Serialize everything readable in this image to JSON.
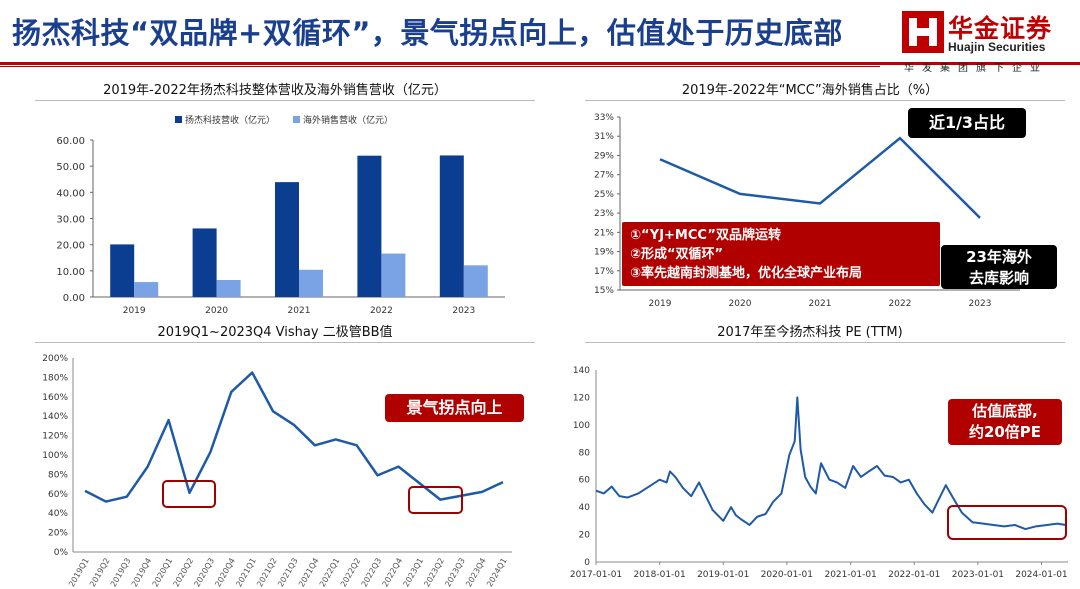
{
  "header": {
    "title": "扬杰科技“双品牌+双循环”，景气拐点向上，估值处于历史底部",
    "logo_cn": "华金证券",
    "logo_en": "Huajin Securities",
    "logo_sub": "华发集团旗下企业"
  },
  "colors": {
    "accent": "#c00000",
    "navy": "#0b3d91",
    "light_blue": "#7aa3e5",
    "line_blue": "#1f5aa6"
  },
  "panels": {
    "revenue": {
      "title": "2019年-2022年扬杰科技整体营收及海外销售营收（亿元）"
    },
    "mcc": {
      "title": "2019年-2022年“MCC”海外销售占比（%）",
      "callout_top": "近1/3占比",
      "callout_red": [
        "①“YJ+MCC”双品牌运转",
        "②形成“双循环”",
        "③率先越南封测基地，优化全球产业布局"
      ],
      "callout_bottom": [
        "23年海外",
        "去库影响"
      ]
    },
    "bb": {
      "title": "2019Q1~2023Q4 Vishay 二极管BB值",
      "callout": "景气拐点向上"
    },
    "pe": {
      "title": "2017年至今扬杰科技 PE (TTM)",
      "callout": [
        "估值底部,",
        "约20倍PE"
      ]
    }
  },
  "chart_data": [
    {
      "type": "bar",
      "categories": [
        "2019",
        "2020",
        "2021",
        "2022",
        "2023"
      ],
      "series": [
        {
          "name": "扬杰科技营收（亿元）",
          "values": [
            20.1,
            26.2,
            43.9,
            54.0,
            54.1
          ],
          "color": "#0b3d91"
        },
        {
          "name": "海外销售营收（亿元）",
          "values": [
            5.7,
            6.5,
            10.4,
            16.6,
            12.1
          ],
          "color": "#7aa3e5"
        }
      ],
      "ylim": [
        0,
        60
      ],
      "yticks": [
        "0.00",
        "10.00",
        "20.00",
        "30.00",
        "40.00",
        "50.00",
        "60.00"
      ],
      "legend": "top"
    },
    {
      "type": "line",
      "x": [
        "2019",
        "2020",
        "2021",
        "2022",
        "2023"
      ],
      "series": [
        {
          "values": [
            28.6,
            25.0,
            24.0,
            30.8,
            22.5
          ]
        }
      ],
      "ylim": [
        15,
        33
      ],
      "yticks": [
        "15%",
        "17%",
        "19%",
        "21%",
        "23%",
        "25%",
        "27%",
        "29%",
        "31%",
        "33%"
      ]
    },
    {
      "type": "line",
      "x": [
        "2019Q1",
        "2019Q2",
        "2019Q3",
        "2019Q4",
        "2020Q1",
        "2020Q2",
        "2020Q3",
        "2020Q4",
        "2021Q1",
        "2021Q2",
        "2021Q3",
        "2021Q4",
        "2022Q1",
        "2022Q2",
        "2022Q3",
        "2022Q4",
        "2023Q1",
        "2023Q2",
        "2023Q3",
        "2023Q4",
        "2024Q1"
      ],
      "series": [
        {
          "values": [
            63,
            52,
            57,
            88,
            136,
            61,
            103,
            165,
            185,
            145,
            131,
            110,
            116,
            110,
            79,
            88,
            71,
            54,
            58,
            62,
            72
          ]
        }
      ],
      "ylim": [
        0,
        200
      ],
      "yticks": [
        "0%",
        "20%",
        "40%",
        "60%",
        "80%",
        "100%",
        "120%",
        "140%",
        "160%",
        "180%",
        "200%"
      ]
    },
    {
      "type": "line",
      "x_range": [
        "2017-01-01",
        "2024-06-01"
      ],
      "xticks": [
        "2017-01-01",
        "2018-01-01",
        "2019-01-01",
        "2020-01-01",
        "2021-01-01",
        "2022-01-01",
        "2023-01-01",
        "2024-01-01"
      ],
      "series": [
        {
          "points": [
            [
              "2017-01-01",
              52
            ],
            [
              "2017-02-15",
              50
            ],
            [
              "2017-04-01",
              55
            ],
            [
              "2017-05-15",
              48
            ],
            [
              "2017-07-01",
              47
            ],
            [
              "2017-09-01",
              50
            ],
            [
              "2017-11-01",
              55
            ],
            [
              "2018-01-01",
              60
            ],
            [
              "2018-02-10",
              58
            ],
            [
              "2018-03-01",
              66
            ],
            [
              "2018-04-01",
              62
            ],
            [
              "2018-05-15",
              54
            ],
            [
              "2018-07-01",
              48
            ],
            [
              "2018-08-15",
              58
            ],
            [
              "2018-09-15",
              50
            ],
            [
              "2018-11-01",
              38
            ],
            [
              "2019-01-01",
              30
            ],
            [
              "2019-02-15",
              40
            ],
            [
              "2019-03-15",
              34
            ],
            [
              "2019-04-15",
              31
            ],
            [
              "2019-06-01",
              27
            ],
            [
              "2019-07-15",
              33
            ],
            [
              "2019-09-01",
              35
            ],
            [
              "2019-10-15",
              44
            ],
            [
              "2019-12-01",
              50
            ],
            [
              "2020-01-15",
              78
            ],
            [
              "2020-02-15",
              88
            ],
            [
              "2020-03-01",
              120
            ],
            [
              "2020-03-20",
              82
            ],
            [
              "2020-04-15",
              62
            ],
            [
              "2020-05-15",
              55
            ],
            [
              "2020-06-15",
              50
            ],
            [
              "2020-07-15",
              72
            ],
            [
              "2020-09-01",
              60
            ],
            [
              "2020-10-15",
              58
            ],
            [
              "2020-12-01",
              54
            ],
            [
              "2021-01-15",
              70
            ],
            [
              "2021-03-01",
              62
            ],
            [
              "2021-04-15",
              66
            ],
            [
              "2021-06-01",
              70
            ],
            [
              "2021-07-15",
              63
            ],
            [
              "2021-09-01",
              62
            ],
            [
              "2021-10-15",
              58
            ],
            [
              "2021-12-01",
              60
            ],
            [
              "2022-01-15",
              50
            ],
            [
              "2022-03-01",
              42
            ],
            [
              "2022-04-15",
              36
            ],
            [
              "2022-05-15",
              44
            ],
            [
              "2022-07-01",
              56
            ],
            [
              "2022-08-15",
              46
            ],
            [
              "2022-10-01",
              36
            ],
            [
              "2022-12-01",
              29
            ],
            [
              "2023-02-01",
              28
            ],
            [
              "2023-04-01",
              27
            ],
            [
              "2023-06-01",
              26
            ],
            [
              "2023-08-01",
              27
            ],
            [
              "2023-10-01",
              24
            ],
            [
              "2023-12-01",
              26
            ],
            [
              "2024-02-01",
              27
            ],
            [
              "2024-04-01",
              28
            ],
            [
              "2024-05-20",
              27
            ]
          ]
        }
      ],
      "ylim": [
        0,
        140
      ],
      "yticks": [
        "0",
        "20",
        "40",
        "60",
        "80",
        "100",
        "120",
        "140"
      ]
    }
  ]
}
